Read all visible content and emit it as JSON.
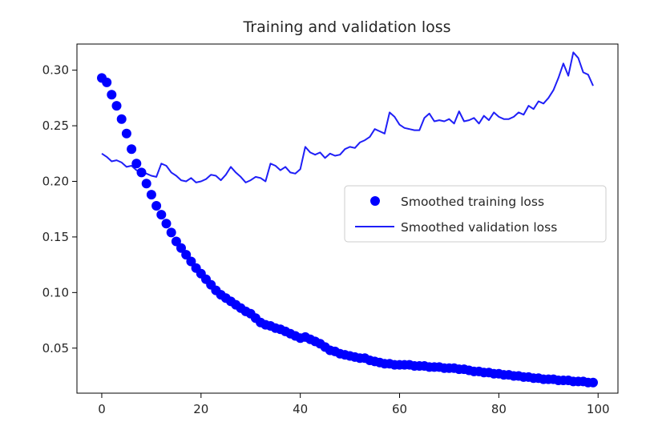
{
  "chart_data": {
    "type": "scatter",
    "title": "Training and validation loss",
    "xlabel": "",
    "ylabel": "",
    "xlim": [
      -5,
      104
    ],
    "ylim": [
      0.0095,
      0.3235
    ],
    "xticks": [
      0,
      20,
      40,
      60,
      80,
      100
    ],
    "xtick_labels": [
      "0",
      "20",
      "40",
      "60",
      "80",
      "100"
    ],
    "yticks": [
      0.05,
      0.1,
      0.15,
      0.2,
      0.25,
      0.3
    ],
    "ytick_labels": [
      "0.05",
      "0.10",
      "0.15",
      "0.20",
      "0.25",
      "0.30"
    ],
    "grid": false,
    "legend_position": "center-right",
    "series": [
      {
        "name": "Smoothed training loss",
        "style": "dots",
        "color": "#0000ff",
        "x": [
          0,
          1,
          2,
          3,
          4,
          5,
          6,
          7,
          8,
          9,
          10,
          11,
          12,
          13,
          14,
          15,
          16,
          17,
          18,
          19,
          20,
          21,
          22,
          23,
          24,
          25,
          26,
          27,
          28,
          29,
          30,
          31,
          32,
          33,
          34,
          35,
          36,
          37,
          38,
          39,
          40,
          41,
          42,
          43,
          44,
          45,
          46,
          47,
          48,
          49,
          50,
          51,
          52,
          53,
          54,
          55,
          56,
          57,
          58,
          59,
          60,
          61,
          62,
          63,
          64,
          65,
          66,
          67,
          68,
          69,
          70,
          71,
          72,
          73,
          74,
          75,
          76,
          77,
          78,
          79,
          80,
          81,
          82,
          83,
          84,
          85,
          86,
          87,
          88,
          89,
          90,
          91,
          92,
          93,
          94,
          95,
          96,
          97,
          98,
          99
        ],
        "values": [
          0.293,
          0.289,
          0.278,
          0.268,
          0.256,
          0.243,
          0.229,
          0.216,
          0.208,
          0.198,
          0.188,
          0.178,
          0.17,
          0.162,
          0.154,
          0.146,
          0.14,
          0.134,
          0.128,
          0.122,
          0.117,
          0.112,
          0.107,
          0.102,
          0.098,
          0.095,
          0.092,
          0.089,
          0.086,
          0.083,
          0.081,
          0.077,
          0.073,
          0.071,
          0.07,
          0.068,
          0.067,
          0.065,
          0.063,
          0.061,
          0.059,
          0.06,
          0.058,
          0.056,
          0.054,
          0.051,
          0.048,
          0.047,
          0.045,
          0.044,
          0.043,
          0.042,
          0.041,
          0.041,
          0.039,
          0.038,
          0.037,
          0.036,
          0.036,
          0.035,
          0.035,
          0.035,
          0.035,
          0.034,
          0.034,
          0.034,
          0.033,
          0.033,
          0.033,
          0.032,
          0.032,
          0.032,
          0.031,
          0.031,
          0.03,
          0.029,
          0.029,
          0.028,
          0.028,
          0.027,
          0.027,
          0.026,
          0.026,
          0.025,
          0.025,
          0.024,
          0.024,
          0.023,
          0.023,
          0.022,
          0.022,
          0.022,
          0.021,
          0.021,
          0.021,
          0.02,
          0.02,
          0.02,
          0.019,
          0.019
        ]
      },
      {
        "name": "Smoothed validation loss",
        "style": "line",
        "color": "#1f1ff7",
        "x": [
          0,
          1,
          2,
          3,
          4,
          5,
          6,
          7,
          8,
          9,
          10,
          11,
          12,
          13,
          14,
          15,
          16,
          17,
          18,
          19,
          20,
          21,
          22,
          23,
          24,
          25,
          26,
          27,
          28,
          29,
          30,
          31,
          32,
          33,
          34,
          35,
          36,
          37,
          38,
          39,
          40,
          41,
          42,
          43,
          44,
          45,
          46,
          47,
          48,
          49,
          50,
          51,
          52,
          53,
          54,
          55,
          56,
          57,
          58,
          59,
          60,
          61,
          62,
          63,
          64,
          65,
          66,
          67,
          68,
          69,
          70,
          71,
          72,
          73,
          74,
          75,
          76,
          77,
          78,
          79,
          80,
          81,
          82,
          83,
          84,
          85,
          86,
          87,
          88,
          89,
          90,
          91,
          92,
          93,
          94,
          95,
          96,
          97,
          98,
          99
        ],
        "values": [
          0.225,
          0.222,
          0.218,
          0.219,
          0.217,
          0.213,
          0.214,
          0.21,
          0.209,
          0.207,
          0.205,
          0.204,
          0.216,
          0.214,
          0.208,
          0.205,
          0.201,
          0.2,
          0.203,
          0.199,
          0.2,
          0.202,
          0.206,
          0.205,
          0.201,
          0.206,
          0.213,
          0.208,
          0.204,
          0.199,
          0.201,
          0.204,
          0.203,
          0.2,
          0.216,
          0.214,
          0.21,
          0.213,
          0.208,
          0.207,
          0.211,
          0.231,
          0.226,
          0.224,
          0.226,
          0.221,
          0.225,
          0.223,
          0.224,
          0.229,
          0.231,
          0.23,
          0.235,
          0.237,
          0.24,
          0.247,
          0.245,
          0.243,
          0.262,
          0.258,
          0.251,
          0.248,
          0.247,
          0.246,
          0.246,
          0.257,
          0.261,
          0.254,
          0.255,
          0.254,
          0.256,
          0.252,
          0.263,
          0.254,
          0.255,
          0.257,
          0.252,
          0.259,
          0.255,
          0.262,
          0.258,
          0.256,
          0.256,
          0.258,
          0.262,
          0.26,
          0.268,
          0.265,
          0.272,
          0.27,
          0.275,
          0.282,
          0.293,
          0.306,
          0.295,
          0.316,
          0.311,
          0.298,
          0.296,
          0.286
        ]
      }
    ]
  }
}
